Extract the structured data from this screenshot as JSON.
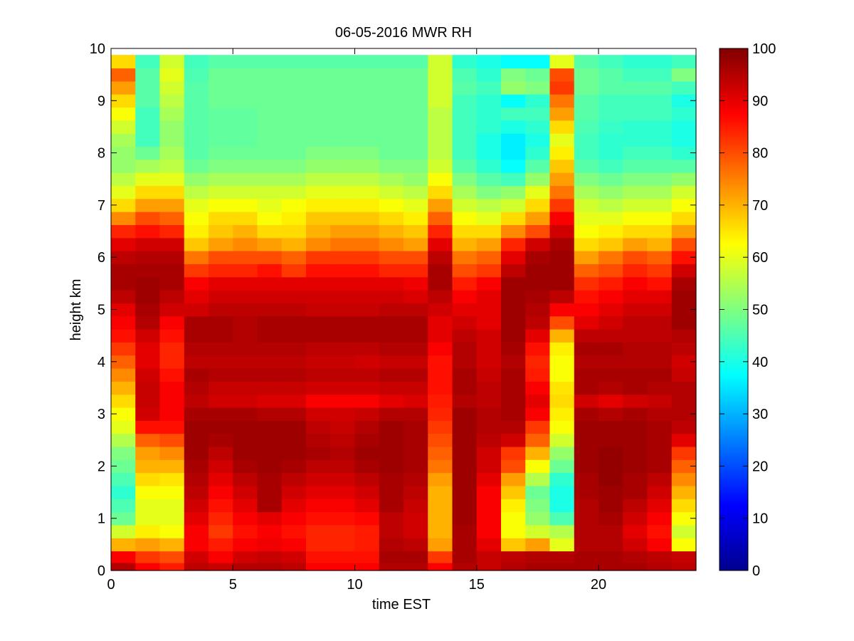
{
  "chart_data": {
    "type": "heatmap",
    "title": "06-05-2016 MWR RH",
    "xlabel": "time EST",
    "ylabel": "height km",
    "xlim": [
      0,
      24
    ],
    "ylim": [
      0,
      10
    ],
    "xticks": [
      0,
      5,
      10,
      15,
      20
    ],
    "yticks": [
      0,
      1,
      2,
      3,
      4,
      5,
      6,
      7,
      8,
      9,
      10
    ],
    "colorbar": {
      "min": 0,
      "max": 100,
      "ticks": [
        0,
        10,
        20,
        30,
        40,
        50,
        60,
        70,
        80,
        90,
        100
      ],
      "colormap": "jet"
    },
    "time_hours": [
      0,
      1,
      2,
      3,
      4,
      5,
      6,
      7,
      8,
      9,
      10,
      11,
      12,
      13,
      14,
      15,
      16,
      17,
      18,
      19,
      20,
      21,
      22,
      23
    ],
    "time_step_hours": 1,
    "height_km": [
      0.05,
      0.25,
      0.5,
      0.75,
      1.0,
      1.25,
      1.5,
      1.75,
      2.0,
      2.25,
      2.5,
      2.75,
      3.0,
      3.25,
      3.5,
      3.75,
      4.0,
      4.25,
      4.5,
      4.75,
      5.0,
      5.25,
      5.5,
      5.75,
      6.0,
      6.25,
      6.5,
      6.75,
      7.0,
      7.25,
      7.5,
      7.75,
      8.0,
      8.25,
      8.5,
      8.75,
      9.0,
      9.25,
      9.5,
      9.75
    ],
    "rh_percent": [
      [
        95,
        88,
        85,
        94,
        93,
        95,
        95,
        94,
        88,
        88,
        88,
        95,
        95,
        88,
        95,
        93,
        95,
        96,
        96,
        96,
        96,
        96,
        95,
        94
      ],
      [
        88,
        82,
        80,
        92,
        88,
        92,
        93,
        92,
        86,
        86,
        86,
        96,
        96,
        82,
        96,
        93,
        94,
        95,
        95,
        96,
        96,
        95,
        94,
        93
      ],
      [
        70,
        72,
        70,
        88,
        85,
        88,
        89,
        88,
        84,
        84,
        85,
        95,
        94,
        72,
        96,
        90,
        68,
        72,
        60,
        95,
        95,
        92,
        88,
        62
      ],
      [
        58,
        64,
        62,
        88,
        82,
        86,
        88,
        86,
        84,
        84,
        85,
        94,
        92,
        70,
        96,
        88,
        62,
        58,
        55,
        95,
        95,
        90,
        86,
        58
      ],
      [
        48,
        60,
        60,
        90,
        84,
        88,
        90,
        88,
        86,
        86,
        87,
        94,
        92,
        70,
        97,
        88,
        62,
        52,
        45,
        95,
        96,
        92,
        88,
        62
      ],
      [
        45,
        60,
        60,
        92,
        86,
        90,
        96,
        90,
        88,
        88,
        90,
        96,
        93,
        70,
        97,
        88,
        64,
        50,
        40,
        95,
        97,
        94,
        90,
        66
      ],
      [
        42,
        62,
        62,
        94,
        88,
        92,
        96,
        92,
        90,
        90,
        92,
        96,
        94,
        70,
        97,
        88,
        68,
        48,
        40,
        96,
        97,
        96,
        92,
        70
      ],
      [
        45,
        66,
        65,
        95,
        90,
        94,
        96,
        94,
        92,
        92,
        94,
        96,
        95,
        72,
        97,
        90,
        72,
        55,
        42,
        96,
        98,
        96,
        94,
        74
      ],
      [
        48,
        70,
        70,
        96,
        92,
        96,
        97,
        96,
        94,
        94,
        96,
        97,
        96,
        76,
        97,
        92,
        80,
        62,
        48,
        97,
        98,
        97,
        96,
        78
      ],
      [
        50,
        72,
        74,
        97,
        94,
        97,
        97,
        97,
        96,
        95,
        97,
        97,
        96,
        78,
        97,
        92,
        82,
        70,
        52,
        97,
        98,
        97,
        96,
        82
      ],
      [
        55,
        78,
        80,
        97,
        96,
        97,
        97,
        97,
        95,
        94,
        96,
        97,
        96,
        80,
        97,
        94,
        92,
        78,
        58,
        97,
        97,
        97,
        96,
        90
      ],
      [
        60,
        86,
        86,
        97,
        97,
        97,
        97,
        97,
        94,
        93,
        95,
        97,
        96,
        82,
        97,
        95,
        95,
        82,
        62,
        97,
        97,
        97,
        96,
        94
      ],
      [
        62,
        92,
        88,
        96,
        96,
        96,
        95,
        95,
        92,
        92,
        93,
        95,
        95,
        84,
        97,
        95,
        96,
        88,
        64,
        96,
        95,
        96,
        95,
        95
      ],
      [
        66,
        93,
        88,
        94,
        92,
        92,
        91,
        91,
        88,
        88,
        88,
        90,
        91,
        85,
        95,
        94,
        96,
        90,
        66,
        92,
        90,
        92,
        93,
        95
      ],
      [
        70,
        93,
        88,
        95,
        93,
        93,
        93,
        93,
        92,
        92,
        92,
        93,
        93,
        86,
        96,
        94,
        96,
        88,
        65,
        96,
        95,
        96,
        95,
        95
      ],
      [
        74,
        92,
        86,
        96,
        95,
        95,
        95,
        95,
        94,
        94,
        94,
        95,
        95,
        86,
        96,
        93,
        96,
        85,
        62,
        96,
        96,
        96,
        96,
        93
      ],
      [
        78,
        90,
        84,
        94,
        94,
        94,
        94,
        94,
        93,
        93,
        92,
        93,
        93,
        86,
        95,
        92,
        95,
        84,
        62,
        95,
        95,
        95,
        95,
        92
      ],
      [
        82,
        90,
        84,
        95,
        95,
        95,
        95,
        95,
        94,
        94,
        94,
        95,
        95,
        88,
        95,
        92,
        96,
        86,
        64,
        96,
        96,
        95,
        95,
        94
      ],
      [
        86,
        92,
        86,
        96,
        96,
        95,
        96,
        96,
        96,
        96,
        96,
        96,
        96,
        90,
        94,
        92,
        97,
        90,
        70,
        94,
        94,
        94,
        94,
        95
      ],
      [
        88,
        95,
        88,
        96,
        96,
        95,
        96,
        96,
        96,
        96,
        96,
        96,
        96,
        90,
        92,
        90,
        97,
        94,
        80,
        90,
        92,
        94,
        94,
        97
      ],
      [
        90,
        96,
        92,
        92,
        94,
        94,
        94,
        94,
        93,
        93,
        93,
        94,
        94,
        92,
        90,
        90,
        97,
        95,
        88,
        88,
        90,
        92,
        92,
        97
      ],
      [
        94,
        97,
        94,
        90,
        92,
        92,
        92,
        92,
        92,
        92,
        92,
        92,
        91,
        94,
        88,
        90,
        97,
        96,
        94,
        86,
        88,
        90,
        90,
        97
      ],
      [
        96,
        97,
        96,
        88,
        90,
        90,
        90,
        90,
        90,
        90,
        90,
        90,
        89,
        96,
        85,
        88,
        97,
        97,
        97,
        83,
        85,
        88,
        86,
        96
      ],
      [
        96,
        96,
        96,
        82,
        84,
        84,
        86,
        82,
        86,
        86,
        86,
        84,
        84,
        96,
        80,
        82,
        94,
        97,
        97,
        78,
        80,
        84,
        82,
        92
      ],
      [
        94,
        95,
        95,
        76,
        80,
        80,
        80,
        78,
        82,
        82,
        82,
        80,
        80,
        94,
        76,
        78,
        90,
        96,
        97,
        72,
        76,
        80,
        78,
        86
      ],
      [
        90,
        92,
        92,
        68,
        72,
        74,
        72,
        70,
        74,
        76,
        76,
        74,
        72,
        90,
        70,
        72,
        84,
        92,
        96,
        66,
        68,
        72,
        70,
        80
      ],
      [
        84,
        86,
        84,
        64,
        68,
        70,
        66,
        66,
        70,
        72,
        72,
        70,
        68,
        84,
        66,
        66,
        74,
        80,
        92,
        62,
        64,
        66,
        66,
        72
      ],
      [
        74,
        80,
        78,
        62,
        66,
        66,
        62,
        64,
        68,
        68,
        68,
        66,
        64,
        78,
        62,
        60,
        66,
        72,
        88,
        60,
        60,
        62,
        62,
        66
      ],
      [
        66,
        72,
        72,
        60,
        62,
        62,
        60,
        62,
        64,
        64,
        64,
        62,
        60,
        72,
        58,
        56,
        58,
        66,
        82,
        58,
        56,
        58,
        58,
        62
      ],
      [
        60,
        66,
        66,
        56,
        58,
        58,
        58,
        58,
        60,
        60,
        60,
        58,
        56,
        66,
        54,
        50,
        52,
        60,
        76,
        54,
        52,
        54,
        54,
        58
      ],
      [
        56,
        60,
        60,
        52,
        54,
        54,
        54,
        54,
        56,
        56,
        56,
        54,
        52,
        62,
        50,
        46,
        44,
        52,
        72,
        50,
        48,
        50,
        50,
        52
      ],
      [
        52,
        54,
        56,
        48,
        50,
        50,
        50,
        50,
        52,
        52,
        52,
        50,
        50,
        58,
        46,
        42,
        38,
        46,
        68,
        46,
        44,
        46,
        46,
        46
      ],
      [
        52,
        48,
        54,
        46,
        48,
        48,
        48,
        48,
        50,
        50,
        50,
        48,
        48,
        56,
        44,
        40,
        36,
        42,
        64,
        44,
        42,
        44,
        44,
        42
      ],
      [
        54,
        44,
        52,
        46,
        47,
        47,
        48,
        48,
        48,
        48,
        48,
        48,
        48,
        56,
        44,
        40,
        36,
        40,
        60,
        44,
        42,
        42,
        42,
        40
      ],
      [
        58,
        44,
        52,
        46,
        47,
        47,
        48,
        48,
        48,
        48,
        48,
        48,
        48,
        56,
        44,
        42,
        40,
        42,
        66,
        45,
        43,
        42,
        42,
        40
      ],
      [
        62,
        44,
        54,
        46,
        47,
        47,
        48,
        48,
        48,
        48,
        48,
        48,
        48,
        56,
        44,
        42,
        44,
        44,
        72,
        46,
        44,
        44,
        44,
        42
      ],
      [
        66,
        46,
        56,
        46,
        48,
        48,
        48,
        48,
        48,
        48,
        48,
        48,
        48,
        58,
        44,
        42,
        38,
        42,
        76,
        46,
        44,
        44,
        44,
        40
      ],
      [
        72,
        46,
        58,
        46,
        48,
        48,
        48,
        48,
        48,
        48,
        48,
        48,
        48,
        58,
        46,
        44,
        52,
        50,
        82,
        48,
        46,
        46,
        46,
        44
      ],
      [
        78,
        46,
        60,
        45,
        48,
        48,
        48,
        48,
        48,
        48,
        48,
        48,
        48,
        58,
        45,
        42,
        50,
        48,
        80,
        48,
        46,
        44,
        44,
        50
      ],
      [
        66,
        44,
        58,
        44,
        46,
        46,
        46,
        46,
        46,
        46,
        46,
        46,
        46,
        58,
        42,
        40,
        38,
        38,
        60,
        46,
        44,
        42,
        42,
        44
      ]
    ]
  }
}
